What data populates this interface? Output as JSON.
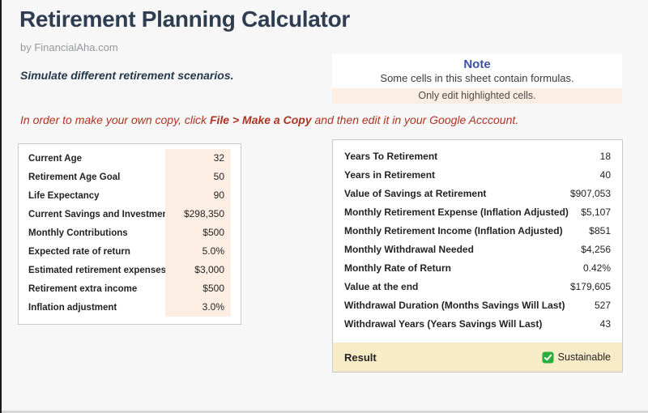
{
  "page": {
    "title": "Retirement Planning Calculator",
    "byline": "by FinancialAha.com",
    "subtitle": "Simulate different retirement scenarios."
  },
  "note": {
    "title": "Note",
    "body": "Some cells in this sheet contain formulas.",
    "highlight": "Only edit highlighted cells."
  },
  "instruction": {
    "prefix": "In order to make your own copy, click ",
    "emphasis": "File > Make a Copy",
    "suffix": " and then edit it in your Google Acccount."
  },
  "inputs": {
    "rows": [
      {
        "label": "Current Age",
        "value": "32"
      },
      {
        "label": "Retirement Age Goal",
        "value": "50"
      },
      {
        "label": "Life Expectancy",
        "value": "90"
      },
      {
        "label": "Current Savings and Investments",
        "value": "$298,350"
      },
      {
        "label": "Monthly Contributions",
        "value": "$500"
      },
      {
        "label": "Expected rate of return",
        "value": "5.0%"
      },
      {
        "label": "Estimated retirement expenses",
        "value": "$3,000"
      },
      {
        "label": "Retirement extra income",
        "value": "$500"
      },
      {
        "label": "Inflation adjustment",
        "value": "3.0%"
      }
    ]
  },
  "results": {
    "rows": [
      {
        "label": "Years To Retirement",
        "value": "18"
      },
      {
        "label": "Years in Retirement",
        "value": "40"
      },
      {
        "label": "Value of Savings at Retirement",
        "value": "$907,053"
      },
      {
        "label": "Monthly Retirement Expense (Inflation Adjusted)",
        "value": "$5,107"
      },
      {
        "label": "Monthly Retirement Income (Inflation Adjusted)",
        "value": "$851"
      },
      {
        "label": "Monthly Withdrawal Needed",
        "value": "$4,256"
      },
      {
        "label": "Monthly Rate of Return",
        "value": "0.42%"
      },
      {
        "label": "Value at the end",
        "value": "$179,605"
      },
      {
        "label": "Withdrawal Duration (Months Savings Will Last)",
        "value": "527"
      },
      {
        "label": "Withdrawal Years (Years Savings Will Last)",
        "value": "43"
      }
    ],
    "result_label": "Result",
    "result_status": "Sustainable",
    "result_icon": "green-check"
  },
  "colors": {
    "peach": "#fdeee3",
    "result_yellow": "#f8ecc8",
    "note_blue": "#3b51a5",
    "alert_red": "#b13121",
    "check_green": "#27ae3b"
  }
}
